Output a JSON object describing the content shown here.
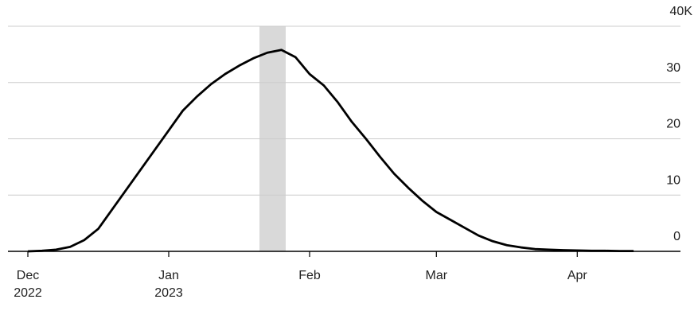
{
  "chart_data": {
    "type": "line",
    "categories": [
      "Dec 2022",
      null,
      null,
      null,
      null,
      null,
      null,
      null,
      null,
      null,
      "Jan 2023",
      null,
      null,
      null,
      null,
      null,
      null,
      null,
      null,
      null,
      "Feb",
      null,
      null,
      null,
      null,
      null,
      null,
      null,
      null,
      "Mar",
      null,
      null,
      null,
      null,
      null,
      null,
      null,
      null,
      null,
      "Apr",
      null,
      null,
      null,
      null
    ],
    "series": [
      {
        "color": "#000000",
        "values": [
          0,
          0.1,
          0.3,
          0.8,
          2,
          4,
          7.5,
          11,
          14.5,
          18,
          21.5,
          25,
          27.5,
          29.7,
          31.5,
          33,
          34.3,
          35.3,
          35.8,
          34.5,
          31.5,
          29.5,
          26.5,
          23,
          20,
          16.8,
          13.8,
          11.3,
          9,
          7,
          5.6,
          4.2,
          2.8,
          1.8,
          1.1,
          0.7,
          0.4,
          0.3,
          0.2,
          0.15,
          0.1,
          0.1,
          0.05,
          0.05
        ]
      }
    ],
    "ylim": [
      0,
      40
    ],
    "yticks": [
      0,
      10,
      20,
      30,
      {
        "value": 40,
        "label": "40K"
      }
    ],
    "grid": true
  }
}
